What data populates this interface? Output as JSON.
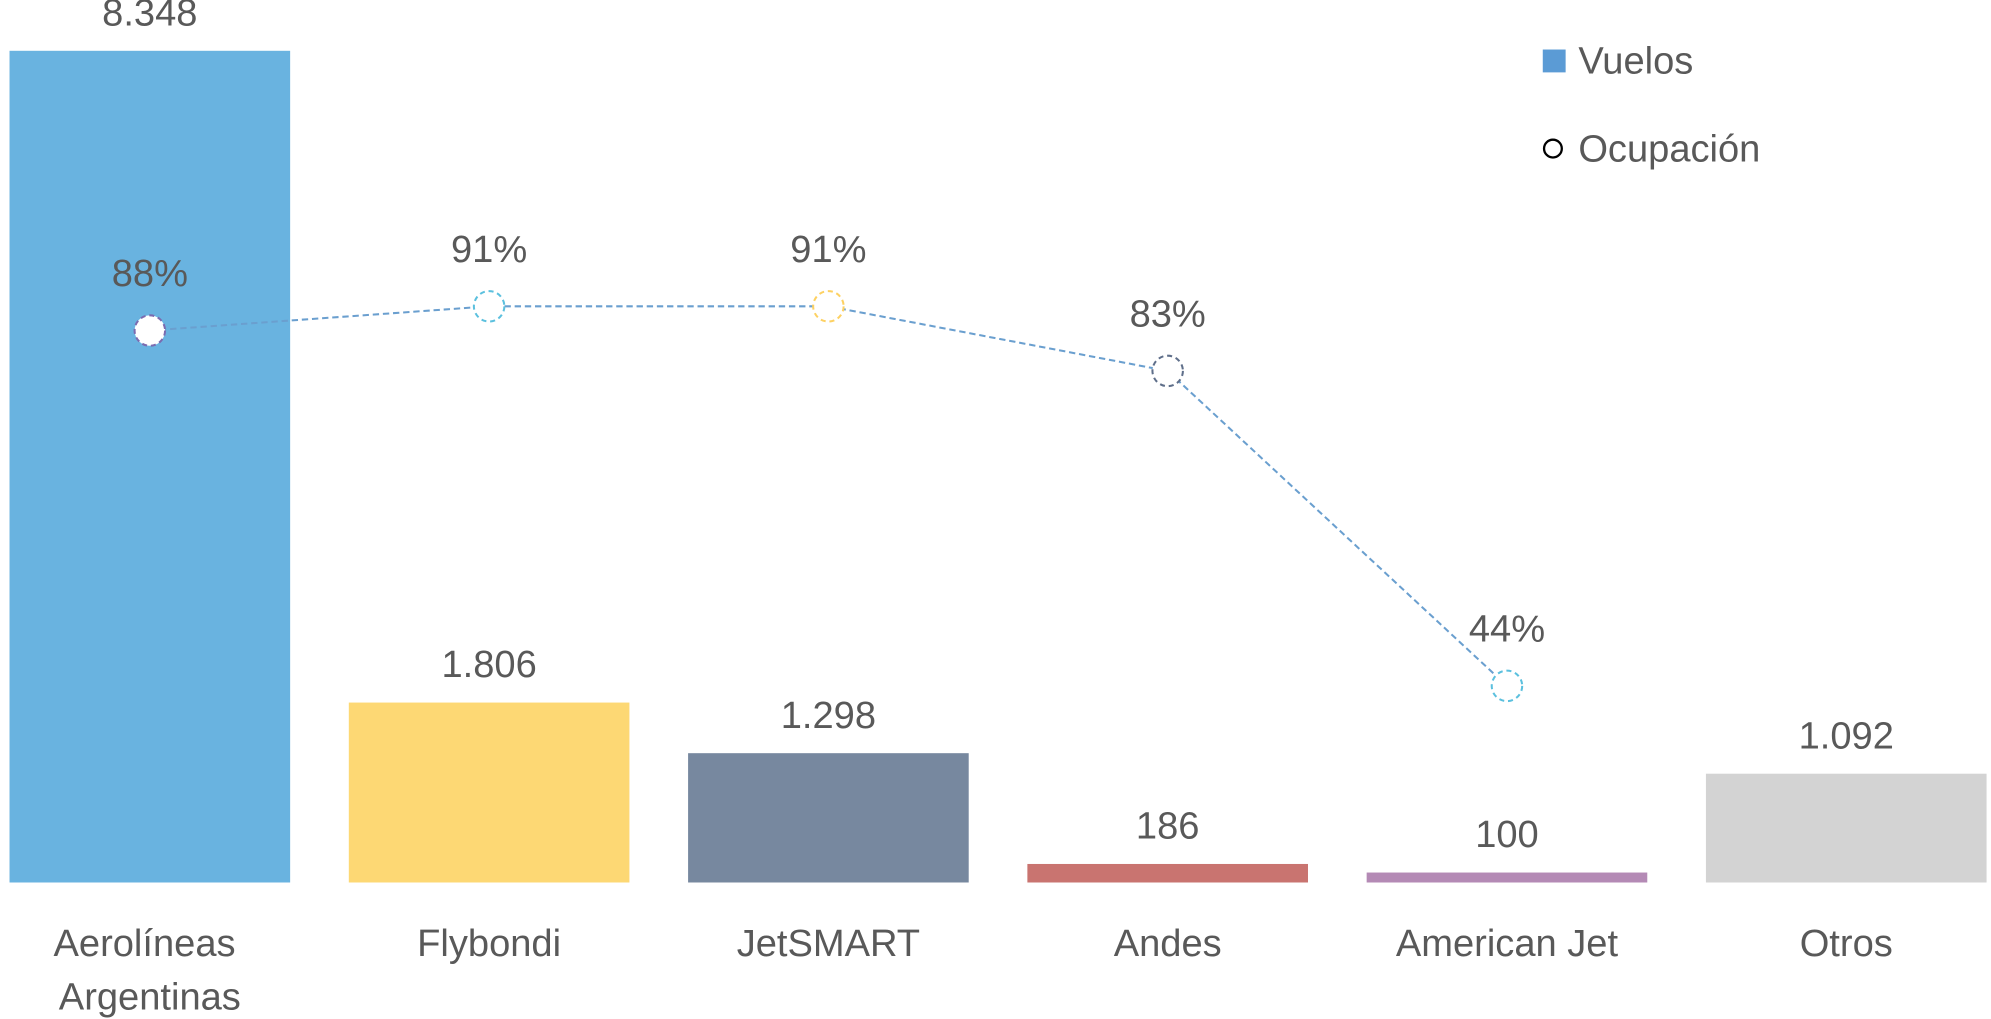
{
  "chart_data": {
    "type": "bar",
    "categories": [
      "Aerolíneas Argentinas",
      "Flybondi",
      "JetSMART",
      "Andes",
      "American Jet",
      "Otros"
    ],
    "ylim": [
      0,
      8348
    ],
    "y2lim": [
      0,
      100
    ],
    "legend": "top-right",
    "series": [
      {
        "name": "Vuelos",
        "type": "bar",
        "color": "#5b9bd5",
        "colors": [
          "#69b3e0",
          "#fdd874",
          "#77889f",
          "#c97470",
          "#b48ab5",
          "#d3d3d3"
        ],
        "values": [
          8348,
          1806,
          1298,
          186,
          100,
          1092
        ],
        "value_labels": [
          "8.348",
          "1.806",
          "1.298",
          "186",
          "100",
          "1.092"
        ]
      },
      {
        "name": "Ocupación",
        "type": "line",
        "axis": "y2",
        "color": "#6a9fcf",
        "colors": [
          "#7b6bb0",
          "#5bc0de",
          "#fdd162",
          "#5f6f8a",
          "#5bc0de",
          null
        ],
        "values": [
          88,
          91,
          91,
          83,
          44,
          null
        ],
        "value_labels": [
          "88%",
          "91%",
          "91%",
          "83%",
          "44%",
          null
        ]
      }
    ]
  }
}
